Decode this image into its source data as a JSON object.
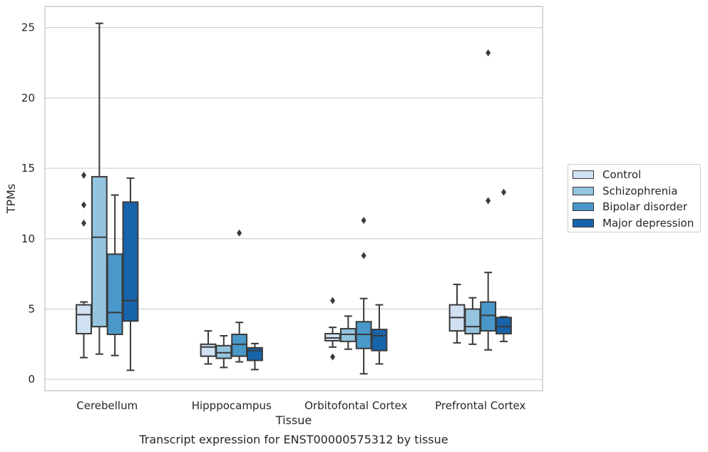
{
  "chart_data": {
    "type": "boxplot",
    "title": "Transcript expression for ENST00000575312 by tissue",
    "xlabel": "Tissue",
    "ylabel": "TPMs",
    "ylim": [
      -0.8,
      26.5
    ],
    "yticks": [
      0,
      5,
      10,
      15,
      20,
      25
    ],
    "grid": "horizontal",
    "legend_position": "right",
    "categories": [
      "Cerebellum",
      "Hipppocampus",
      "Orbitofontal Cortex",
      "Prefrontal Cortex"
    ],
    "series": [
      {
        "name": "Control",
        "color": "#d0e1f2",
        "boxes": [
          {
            "whislo": 1.55,
            "q1": 3.25,
            "med": 4.6,
            "q3": 5.3,
            "whishi": 5.5,
            "fliers": [
              11.1,
              12.4,
              14.5
            ]
          },
          {
            "whislo": 1.1,
            "q1": 1.65,
            "med": 2.3,
            "q3": 2.5,
            "whishi": 3.45,
            "fliers": []
          },
          {
            "whislo": 2.3,
            "q1": 2.75,
            "med": 2.95,
            "q3": 3.25,
            "whishi": 3.7,
            "fliers": [
              1.6,
              5.6
            ]
          },
          {
            "whislo": 2.6,
            "q1": 3.45,
            "med": 4.4,
            "q3": 5.3,
            "whishi": 6.75,
            "fliers": []
          }
        ]
      },
      {
        "name": "Schizophrenia",
        "color": "#94c4df",
        "boxes": [
          {
            "whislo": 1.8,
            "q1": 3.75,
            "med": 10.1,
            "q3": 14.4,
            "whishi": 25.3,
            "fliers": []
          },
          {
            "whislo": 0.85,
            "q1": 1.5,
            "med": 1.9,
            "q3": 2.4,
            "whishi": 3.1,
            "fliers": []
          },
          {
            "whislo": 2.15,
            "q1": 2.7,
            "med": 3.2,
            "q3": 3.6,
            "whishi": 4.5,
            "fliers": []
          },
          {
            "whislo": 2.5,
            "q1": 3.25,
            "med": 3.75,
            "q3": 5.0,
            "whishi": 5.8,
            "fliers": []
          }
        ]
      },
      {
        "name": "Bipolar disorder",
        "color": "#4a98c9",
        "boxes": [
          {
            "whislo": 1.7,
            "q1": 3.2,
            "med": 4.75,
            "q3": 8.9,
            "whishi": 13.1,
            "fliers": []
          },
          {
            "whislo": 1.25,
            "q1": 1.65,
            "med": 2.5,
            "q3": 3.2,
            "whishi": 4.05,
            "fliers": [
              10.4
            ]
          },
          {
            "whislo": 0.4,
            "q1": 2.2,
            "med": 3.2,
            "q3": 4.1,
            "whishi": 5.75,
            "fliers": [
              8.8,
              11.3
            ]
          },
          {
            "whislo": 2.1,
            "q1": 3.45,
            "med": 4.55,
            "q3": 5.5,
            "whishi": 7.6,
            "fliers": [
              12.7,
              23.2
            ]
          }
        ]
      },
      {
        "name": "Major depression",
        "color": "#1764ab",
        "boxes": [
          {
            "whislo": 0.65,
            "q1": 4.15,
            "med": 5.6,
            "q3": 12.6,
            "whishi": 14.3,
            "fliers": []
          },
          {
            "whislo": 0.7,
            "q1": 1.35,
            "med": 2.05,
            "q3": 2.25,
            "whishi": 2.55,
            "fliers": []
          },
          {
            "whislo": 1.1,
            "q1": 2.05,
            "med": 3.1,
            "q3": 3.55,
            "whishi": 5.3,
            "fliers": []
          },
          {
            "whislo": 2.7,
            "q1": 3.25,
            "med": 3.75,
            "q3": 4.4,
            "whishi": 4.45,
            "fliers": [
              13.3
            ]
          }
        ]
      }
    ]
  }
}
